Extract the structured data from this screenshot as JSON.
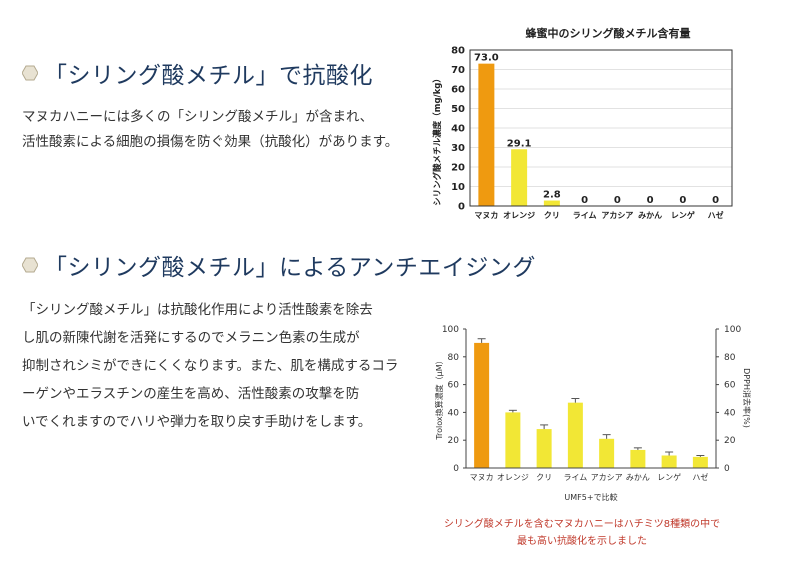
{
  "section1": {
    "heading": "「シリング酸メチル」で抗酸化",
    "lines": [
      "マヌカハニーには多くの「シリング酸メチル」が含まれ、",
      "活性酸素による細胞の損傷を防ぐ効果（抗酸化）があります。"
    ]
  },
  "section2": {
    "heading": "「シリング酸メチル」によるアンチエイジング",
    "lines": [
      "「シリング酸メチル」は抗酸化作用により活性酸素を除去",
      "し肌の新陳代謝を活発にするのでメラニン色素の生成が",
      "抑制されシミができにくくなります。また、肌を構成するコラ",
      "ーゲンやエラスチンの産生を高め、活性酸素の攻撃を防",
      "いでくれますのでハリや弾力を取り戻す手助けをします。"
    ]
  },
  "caption": {
    "line1": "シリング酸メチルを含むマヌカハニーはハチミツ8種類の中で",
    "line2": "最も高い抗酸化を示しました"
  },
  "colors": {
    "heading": "#1f3a5f",
    "manuka": "#ef9a10",
    "other": "#f2e735",
    "caption": "#c0392b"
  },
  "chart_data": [
    {
      "type": "bar",
      "title": "蜂蜜中のシリング酸メチル含有量",
      "xlabel": "",
      "ylabel": "シリング酸メチル濃度（mg/kg）",
      "categories": [
        "マヌカ",
        "オレンジ",
        "クリ",
        "ライム",
        "アカシア",
        "みかん",
        "レンゲ",
        "ハゼ"
      ],
      "values": [
        73.0,
        29.1,
        2.8,
        0,
        0,
        0,
        0,
        0
      ],
      "value_labels": [
        "73.0",
        "29.1",
        "2.8",
        "0",
        "0",
        "0",
        "0",
        "0"
      ],
      "ylim": [
        0,
        80
      ],
      "yticks": [
        0,
        10,
        20,
        30,
        40,
        50,
        60,
        70,
        80
      ],
      "grid": true
    },
    {
      "type": "bar",
      "title": "",
      "xlabel": "UMF5+で比較",
      "ylabel": "Trolox換算濃度（μM）",
      "ylabel_right": "DPPH消去率(%)",
      "categories": [
        "マヌカ",
        "オレンジ",
        "クリ",
        "ライム",
        "アカシア",
        "みかん",
        "レンゲ",
        "ハゼ"
      ],
      "values": [
        90,
        40,
        28,
        47,
        21,
        13,
        9,
        8
      ],
      "errors": [
        3,
        1.5,
        3,
        3,
        3,
        1.5,
        2.5,
        1
      ],
      "ylim": [
        0,
        100
      ],
      "yticks": [
        0,
        20,
        40,
        60,
        80,
        100
      ],
      "y2ticks": [
        0,
        20,
        40,
        60,
        80,
        100
      ],
      "grid": false
    }
  ]
}
